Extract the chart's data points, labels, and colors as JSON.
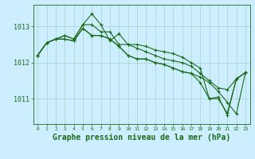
{
  "background_color": "#cceeff",
  "grid_color": "#aaddcc",
  "line_color": "#1a6b1a",
  "marker_color": "#1a6b1a",
  "xlabel": "Graphe pression niveau de la mer (hPa)",
  "xlabel_fontsize": 7.0,
  "ytick_labels": [
    "1011",
    "1012",
    "1013"
  ],
  "ytick_vals": [
    1011,
    1012,
    1013
  ],
  "xlim": [
    -0.5,
    23.5
  ],
  "ylim": [
    1010.3,
    1013.6
  ],
  "series": [
    [
      1012.2,
      1012.55,
      1012.65,
      1012.75,
      1012.65,
      1013.05,
      1013.35,
      1013.05,
      1012.6,
      1012.8,
      1012.5,
      1012.5,
      1012.45,
      1012.35,
      1012.3,
      1012.25,
      1012.15,
      1012.0,
      1011.85,
      1011.0,
      1011.0,
      1010.6,
      1011.55,
      1011.72
    ],
    [
      1012.2,
      1012.55,
      1012.65,
      1012.75,
      1012.65,
      1013.05,
      1013.05,
      1012.85,
      1012.85,
      1012.5,
      1012.5,
      1012.4,
      1012.3,
      1012.2,
      1012.1,
      1012.05,
      1012.0,
      1011.9,
      1011.7,
      1011.5,
      1011.3,
      1011.25,
      1011.55,
      1011.72
    ],
    [
      1012.2,
      1012.55,
      1012.65,
      1012.65,
      1012.6,
      1012.95,
      1012.75,
      1012.75,
      1012.65,
      1012.45,
      1012.2,
      1012.1,
      1012.1,
      1012.0,
      1011.95,
      1011.85,
      1011.75,
      1011.7,
      1011.45,
      1011.0,
      1011.05,
      1010.55,
      1011.55,
      1011.72
    ],
    [
      1012.2,
      1012.55,
      1012.65,
      1012.65,
      1012.6,
      1012.95,
      1012.75,
      1012.75,
      1012.65,
      1012.45,
      1012.2,
      1012.1,
      1012.1,
      1012.0,
      1011.95,
      1011.85,
      1011.75,
      1011.7,
      1011.6,
      1011.45,
      1011.2,
      1010.9,
      1010.58,
      1011.72
    ]
  ]
}
